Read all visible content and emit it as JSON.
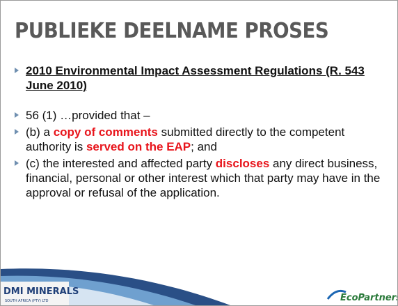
{
  "slide": {
    "title": "PUBLIEKE DEELNAME PROSES",
    "bullets": [
      {
        "heading": true,
        "segments": [
          {
            "text": "2010 Environmental Impact Assessment Regulations (R. 543 June 2010)",
            "highlight": false
          }
        ]
      },
      {
        "heading": false,
        "segments": [
          {
            "text": "56 (1) …provided that –",
            "highlight": false
          }
        ]
      },
      {
        "heading": false,
        "segments": [
          {
            "text": "(b)  a ",
            "highlight": false
          },
          {
            "text": "copy of comments",
            "highlight": true
          },
          {
            "text": " submitted directly to the competent authority is ",
            "highlight": false
          },
          {
            "text": "served on the EAP",
            "highlight": true
          },
          {
            "text": "; and",
            "highlight": false
          }
        ]
      },
      {
        "heading": false,
        "segments": [
          {
            "text": "(c) the interested and affected party ",
            "highlight": false
          },
          {
            "text": "discloses",
            "highlight": true
          },
          {
            "text": " any direct business, financial, personal or other interest which that party may have in the approval or refusal of the application.",
            "highlight": false
          }
        ]
      }
    ],
    "logos": {
      "left": "DMI MINERALS",
      "left_sub": "SOUTH AFRICA (PTY) LTD",
      "right": "EcoPartners"
    }
  }
}
